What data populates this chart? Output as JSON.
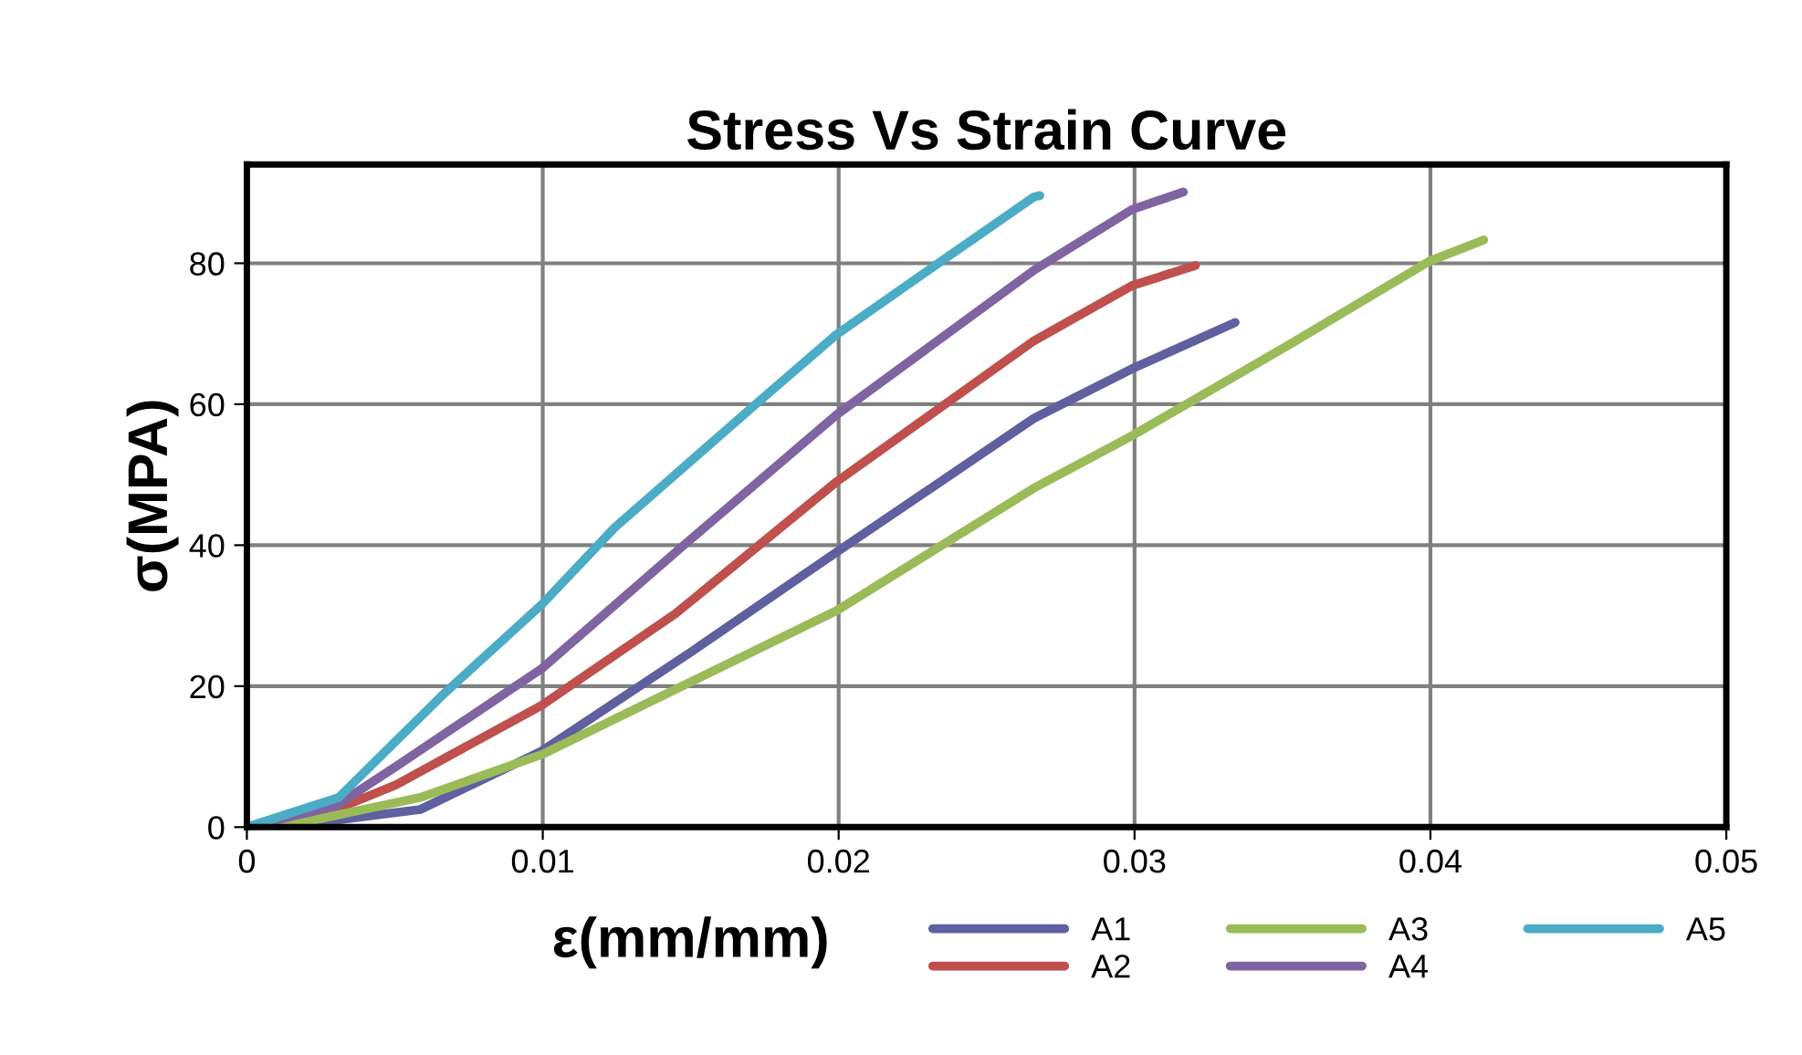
{
  "chart_data": {
    "type": "line",
    "title": "Stress Vs Strain Curve",
    "xlabel": "ε(mm/mm)",
    "ylabel": "σ(MPA)",
    "xlim": [
      0,
      0.05
    ],
    "xticks": [
      0,
      0.01,
      0.02,
      0.03,
      0.04,
      0.05
    ],
    "ylim": [
      0,
      94
    ],
    "yticks": [
      0,
      20,
      40,
      60,
      80
    ],
    "grid": true,
    "legend": "bottom right",
    "marker": "none",
    "line_style": "solid",
    "series": [
      {
        "name": "A1",
        "color": "#5f60a0",
        "x": [
          0,
          0.003,
          0.00586,
          0.00997,
          0.0151,
          0.01993,
          0.0266,
          0.0299,
          0.0334
        ],
        "values": [
          0,
          1,
          2.5,
          10.8,
          25.1,
          39,
          58,
          65,
          71.6
        ]
      },
      {
        "name": "A2",
        "color": "#c0504d",
        "x": [
          0,
          0.003,
          0.00504,
          0.00997,
          0.01449,
          0.01993,
          0.0266,
          0.0299,
          0.03206
        ],
        "values": [
          0,
          2.5,
          6,
          17.3,
          30.3,
          49,
          69,
          76.8,
          79.7
        ]
      },
      {
        "name": "A3",
        "color": "#9bbb59",
        "x": [
          0,
          0.0017,
          0.00586,
          0.00997,
          0.0151,
          0.01993,
          0.0266,
          0.0299,
          0.03525,
          0.03997,
          0.0418
        ],
        "values": [
          0,
          0.5,
          4.2,
          10.3,
          20.8,
          30.7,
          48.1,
          55.5,
          68.5,
          80.3,
          83.3
        ]
      },
      {
        "name": "A4",
        "color": "#8064a2",
        "x": [
          0,
          0.003,
          0.00504,
          0.00997,
          0.01449,
          0.01993,
          0.0266,
          0.0299,
          0.03165
        ],
        "values": [
          0,
          3,
          8.6,
          22.5,
          39,
          58.5,
          79,
          87.6,
          90.1
        ]
      },
      {
        "name": "A5",
        "color": "#4bacc6",
        "x": [
          0,
          0.0031,
          0.00668,
          0.00997,
          0.01243,
          0.0172,
          0.0199,
          0.0233,
          0.0266,
          0.0268
        ],
        "values": [
          0,
          4.2,
          19,
          31.6,
          42.5,
          60,
          69.8,
          79.8,
          89.4,
          89.6
        ]
      }
    ]
  }
}
